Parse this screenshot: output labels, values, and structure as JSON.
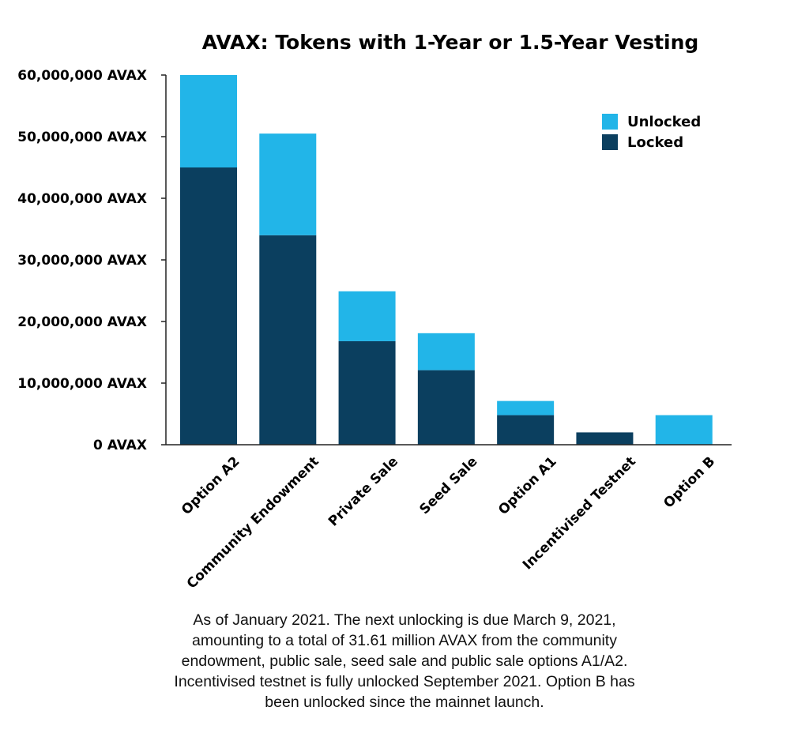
{
  "chart_data": {
    "type": "bar",
    "stacked": true,
    "title": "AVAX: Tokens with 1-Year or 1.5-Year Vesting",
    "xlabel": "",
    "ylabel": "",
    "ylim": [
      0,
      60000000
    ],
    "yticks": [
      0,
      10000000,
      20000000,
      30000000,
      40000000,
      50000000,
      60000000
    ],
    "ytick_labels": [
      "0 AVAX",
      "10,000,000 AVAX",
      "20,000,000 AVAX",
      "30,000,000 AVAX",
      "40,000,000 AVAX",
      "50,000,000 AVAX",
      "60,000,000 AVAX"
    ],
    "categories": [
      "Option A2",
      "Community Endowment",
      "Private Sale",
      "Seed Sale",
      "Option A1",
      "Incentivised Testnet",
      "Option B"
    ],
    "series": [
      {
        "name": "Locked",
        "color": "#0b3f5f",
        "values": [
          45000000,
          34000000,
          16800000,
          12100000,
          4800000,
          2000000,
          0
        ]
      },
      {
        "name": "Unlocked",
        "color": "#22b5e8",
        "values": [
          15000000,
          16500000,
          8100000,
          6000000,
          2300000,
          0,
          4800000
        ]
      }
    ],
    "legend": {
      "position": "top-right",
      "entries": [
        "Unlocked",
        "Locked"
      ]
    },
    "grid": false
  },
  "caption": {
    "lines": [
      "As of January 2021. The next unlocking is due March 9, 2021,",
      "amounting to a total of 31.61 million AVAX from the community",
      "endowment, public sale, seed sale and public sale options A1/A2.",
      "Incentivised testnet is fully unlocked September 2021. Option B has",
      "been unlocked since the mainnet launch."
    ]
  }
}
